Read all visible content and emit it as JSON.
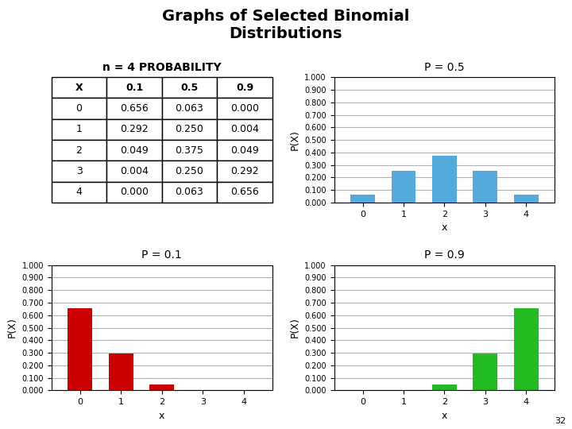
{
  "title": "Graphs of Selected Binomial\nDistributions",
  "annotation": "32",
  "chart_data": [
    {
      "type": "table",
      "title": "n = 4 PROBABILITY",
      "columns": [
        "X",
        "0.1",
        "0.5",
        "0.9"
      ],
      "rows": [
        [
          "0",
          "0.656",
          "0.063",
          "0.000"
        ],
        [
          "1",
          "0.292",
          "0.250",
          "0.004"
        ],
        [
          "2",
          "0.049",
          "0.375",
          "0.049"
        ],
        [
          "3",
          "0.004",
          "0.250",
          "0.292"
        ],
        [
          "4",
          "0.000",
          "0.063",
          "0.656"
        ]
      ]
    },
    {
      "type": "bar",
      "title": "P = 0.5",
      "x_label": "x",
      "y_label": "P(X)",
      "x": [
        0,
        1,
        2,
        3,
        4
      ],
      "values": [
        0.063,
        0.25,
        0.375,
        0.25,
        0.063
      ],
      "color": "#55aadd",
      "xlim": [
        -0.7,
        4.7
      ],
      "xticks": [
        0,
        1,
        2,
        3,
        4
      ],
      "ylim": [
        0,
        1.0
      ],
      "yticks": [
        {
          "value": 0.0,
          "label": "0.000"
        },
        {
          "value": 0.1,
          "label": "0.100"
        },
        {
          "value": 0.2,
          "label": "0.200"
        },
        {
          "value": 0.3,
          "label": "0.300"
        },
        {
          "value": 0.4,
          "label": "0.400"
        },
        {
          "value": 0.5,
          "label": "0.500"
        },
        {
          "value": 0.6,
          "label": "0.600"
        },
        {
          "value": 0.7,
          "label": "0.700"
        },
        {
          "value": 0.8,
          "label": "0.800"
        },
        {
          "value": 0.9,
          "label": "0.900"
        },
        {
          "value": 1.0,
          "label": "1.000"
        }
      ],
      "grid": "y"
    },
    {
      "type": "bar",
      "title": "P = 0.1",
      "x_label": "x",
      "y_label": "P(X)",
      "x": [
        0,
        1,
        2,
        3,
        4
      ],
      "values": [
        0.656,
        0.292,
        0.049,
        0.004,
        0.0
      ],
      "color": "#cc0000",
      "xlim": [
        -0.7,
        4.7
      ],
      "xticks": [
        0,
        1,
        2,
        3,
        4
      ],
      "ylim": [
        0,
        1.0
      ],
      "yticks": [
        {
          "value": 0.0,
          "label": "0.000"
        },
        {
          "value": 0.1,
          "label": "0.100"
        },
        {
          "value": 0.2,
          "label": "0.200"
        },
        {
          "value": 0.3,
          "label": "0.300"
        },
        {
          "value": 0.4,
          "label": "0.400"
        },
        {
          "value": 0.5,
          "label": "0.500"
        },
        {
          "value": 0.6,
          "label": "0.600"
        },
        {
          "value": 0.7,
          "label": "0.700"
        },
        {
          "value": 0.8,
          "label": "0.800"
        },
        {
          "value": 0.9,
          "label": "0.900"
        },
        {
          "value": 1.0,
          "label": "1.000"
        }
      ],
      "grid": "y"
    },
    {
      "type": "bar",
      "title": "P = 0.9",
      "x_label": "x",
      "y_label": "P(X)",
      "x": [
        0,
        1,
        2,
        3,
        4
      ],
      "values": [
        0.0,
        0.004,
        0.049,
        0.292,
        0.656
      ],
      "color": "#22bb22",
      "xlim": [
        -0.7,
        4.7
      ],
      "xticks": [
        0,
        1,
        2,
        3,
        4
      ],
      "ylim": [
        0,
        1.0
      ],
      "yticks": [
        {
          "value": 0.0,
          "label": "0.000"
        },
        {
          "value": 0.1,
          "label": "0.100"
        },
        {
          "value": 0.2,
          "label": "0.200"
        },
        {
          "value": 0.3,
          "label": "0.300"
        },
        {
          "value": 0.4,
          "label": "0.400"
        },
        {
          "value": 0.5,
          "label": "0.500"
        },
        {
          "value": 0.6,
          "label": "0.600"
        },
        {
          "value": 0.7,
          "label": "0.700"
        },
        {
          "value": 0.8,
          "label": "0.800"
        },
        {
          "value": 0.9,
          "label": "0.900"
        },
        {
          "value": 1.0,
          "label": "1.000"
        }
      ],
      "grid": "y"
    }
  ]
}
